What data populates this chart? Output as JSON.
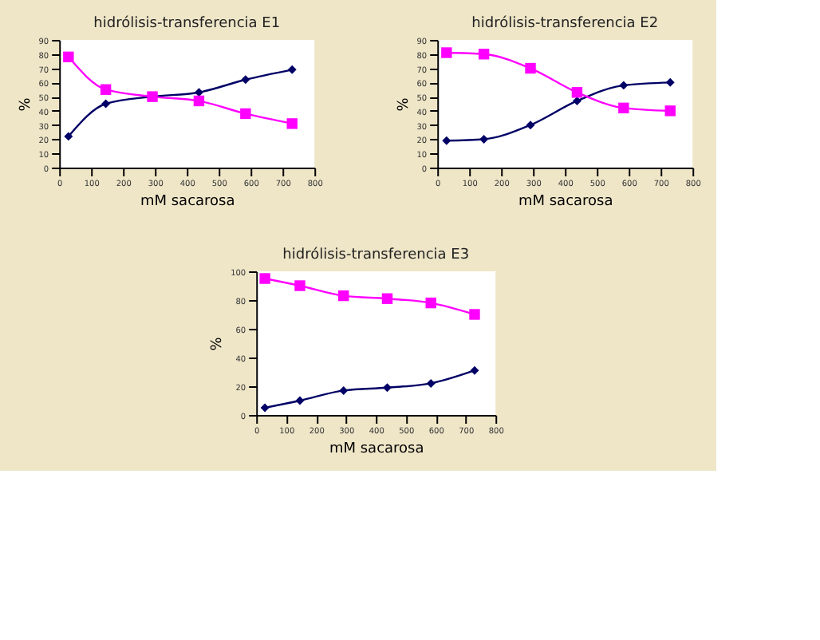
{
  "chart_data": [
    {
      "type": "line",
      "title": "hidrólisis-transferencia E1",
      "xlabel": "mM sacarosa",
      "ylabel": "%",
      "x": [
        29,
        146,
        292,
        438,
        584,
        730
      ],
      "xlim": [
        0,
        800
      ],
      "xticks": [
        0,
        100,
        200,
        300,
        400,
        500,
        600,
        700,
        800
      ],
      "ylim": [
        0,
        90
      ],
      "yticks": [
        0,
        10,
        20,
        30,
        40,
        50,
        60,
        70,
        80,
        90
      ],
      "grid": false,
      "series": [
        {
          "color": "#000066",
          "marker": "diamond",
          "values": [
            22,
            45,
            50,
            53,
            62,
            69
          ]
        },
        {
          "color": "#ff00ff",
          "marker": "square",
          "values": [
            78,
            55,
            50,
            47,
            38,
            31
          ]
        }
      ]
    },
    {
      "type": "line",
      "title": "hidrólisis-transferencia E2",
      "xlabel": "mM sacarosa",
      "ylabel": "%",
      "x": [
        29,
        146,
        292,
        438,
        584,
        730
      ],
      "xlim": [
        0,
        800
      ],
      "xticks": [
        0,
        100,
        200,
        300,
        400,
        500,
        600,
        700,
        800
      ],
      "ylim": [
        0,
        90
      ],
      "yticks": [
        0,
        10,
        20,
        30,
        40,
        50,
        60,
        70,
        80,
        90
      ],
      "grid": false,
      "series": [
        {
          "color": "#000066",
          "marker": "diamond",
          "values": [
            19,
            20,
            30,
            47,
            58,
            60
          ]
        },
        {
          "color": "#ff00ff",
          "marker": "square",
          "values": [
            81,
            80,
            70,
            53,
            42,
            40
          ]
        }
      ]
    },
    {
      "type": "line",
      "title": "hidrólisis-transferencia E3",
      "xlabel": "mM sacarosa",
      "ylabel": "%",
      "x": [
        29,
        146,
        292,
        438,
        584,
        730
      ],
      "xlim": [
        0,
        800
      ],
      "xticks": [
        0,
        100,
        200,
        300,
        400,
        500,
        600,
        700,
        800
      ],
      "ylim": [
        0,
        100
      ],
      "yticks": [
        0,
        20,
        40,
        60,
        80,
        100
      ],
      "grid": false,
      "series": [
        {
          "color": "#000066",
          "marker": "diamond",
          "values": [
            5,
            10,
            17,
            19,
            22,
            31
          ]
        },
        {
          "color": "#ff00ff",
          "marker": "square",
          "values": [
            95,
            90,
            83,
            81,
            78,
            70
          ]
        }
      ]
    }
  ]
}
